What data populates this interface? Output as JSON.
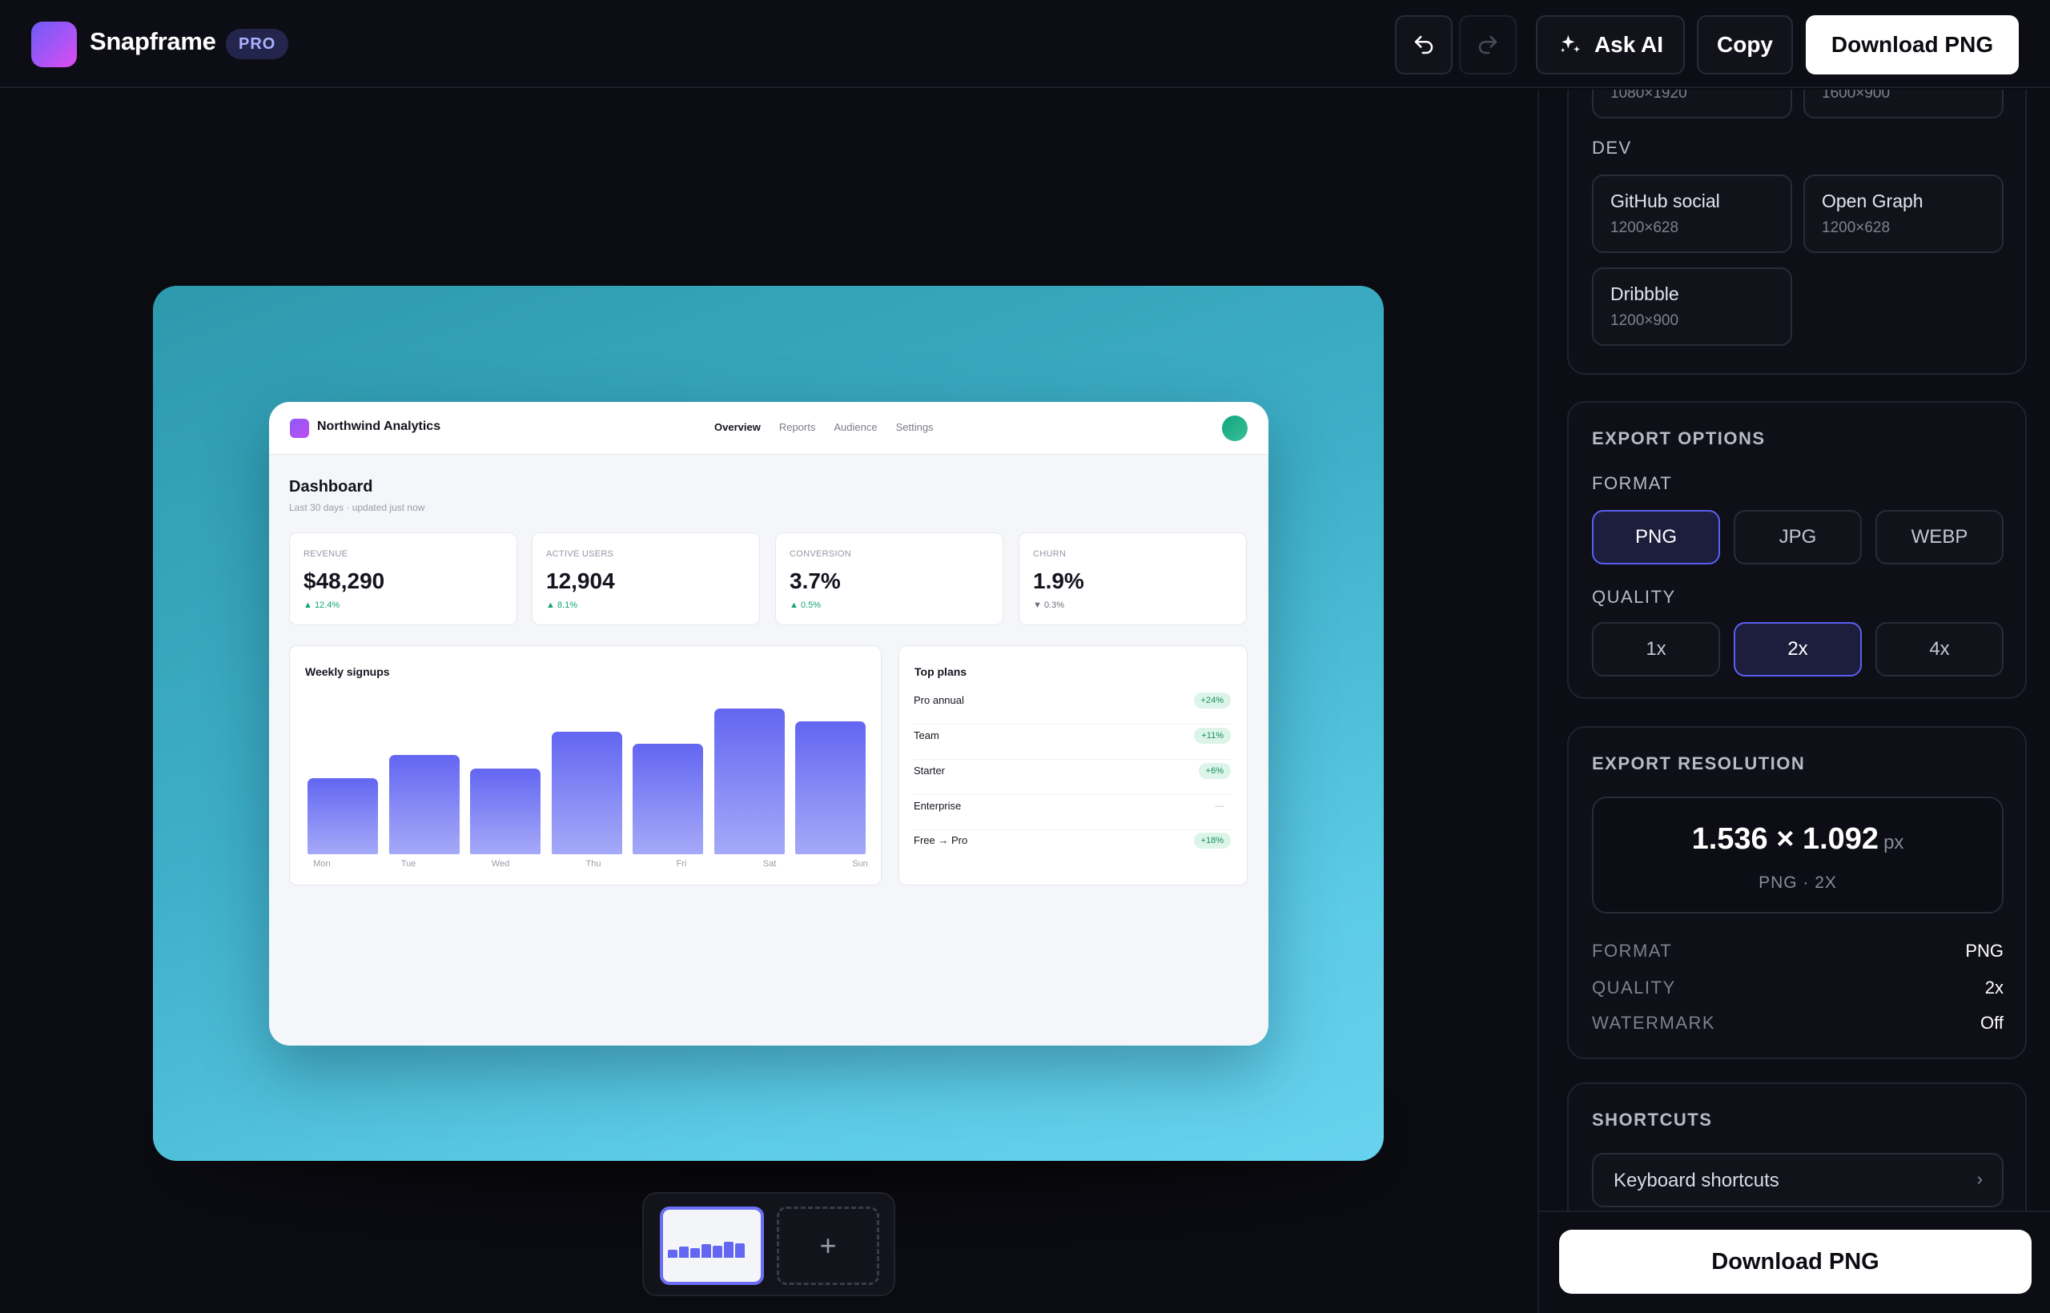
{
  "app": {
    "name": "Snapframe",
    "badge": "PRO"
  },
  "toolbar": {
    "ask_ai_label": "Ask AI",
    "copy_label": "Copy",
    "download_label": "Download PNG"
  },
  "icons": {
    "logo": "logo-mark",
    "undo": "undo-icon",
    "redo": "redo-icon",
    "sparkle": "sparkle-icon",
    "add": "plus-icon",
    "chevron": "chevron-right-icon"
  },
  "colors": {
    "accent": "#5b5ff0",
    "frame_gradient_start": "#2d99ad",
    "frame_gradient_end": "#67d3ee",
    "positive": "#12a275"
  },
  "mock": {
    "brand": "Northwind Analytics",
    "tabs": [
      "Overview",
      "Reports",
      "Audience",
      "Settings"
    ],
    "active_tab": "Overview",
    "title": "Dashboard",
    "subtitle": "Last 30 days · updated just now",
    "stats": [
      {
        "label": "REVENUE",
        "value": "$48,290",
        "delta": "▲ 12.4%"
      },
      {
        "label": "ACTIVE USERS",
        "value": "12,904",
        "delta": "▲ 8.1%"
      },
      {
        "label": "CONVERSION",
        "value": "3.7%",
        "delta": "▲ 0.5%"
      },
      {
        "label": "CHURN",
        "value": "1.9%",
        "delta": "▼ 0.3%"
      }
    ],
    "chart": {
      "title": "Weekly signups",
      "days": [
        "Mon",
        "Tue",
        "Wed",
        "Thu",
        "Fri",
        "Sat",
        "Sun"
      ],
      "values": [
        52,
        68,
        59,
        84,
        76,
        100,
        91
      ]
    },
    "plans": {
      "title": "Top plans",
      "rows": [
        {
          "name": "Pro annual",
          "tag": "+24%"
        },
        {
          "name": "Team",
          "tag": "+11%"
        },
        {
          "name": "Starter",
          "tag": "+6%"
        },
        {
          "name": "Enterprise",
          "tag": "—"
        },
        {
          "name": "Free → Pro",
          "tag": "+18%"
        }
      ]
    }
  },
  "thumbs": {
    "add_label": "+"
  },
  "panel": {
    "top_sizes": [
      {
        "dims": "1080×1920"
      },
      {
        "dims": "1600×900"
      }
    ],
    "dev": {
      "heading": "DEV",
      "sizes": [
        {
          "name": "GitHub social",
          "dims": "1200×628"
        },
        {
          "name": "Open Graph",
          "dims": "1200×628"
        },
        {
          "name": "Dribbble",
          "dims": "1200×900"
        }
      ]
    },
    "export_options": {
      "heading": "EXPORT OPTIONS",
      "format_heading": "FORMAT",
      "formats": [
        "PNG",
        "JPG",
        "WEBP"
      ],
      "selected_format": "PNG",
      "quality_heading": "QUALITY",
      "qualities": [
        "1x",
        "2x",
        "4x"
      ],
      "selected_quality": "2x"
    },
    "export_resolution": {
      "heading": "EXPORT RESOLUTION",
      "value": "1.536 × 1.092",
      "unit": "px",
      "summary": "PNG · 2X",
      "rows": [
        {
          "key": "FORMAT",
          "value": "PNG"
        },
        {
          "key": "QUALITY",
          "value": "2x"
        },
        {
          "key": "WATERMARK",
          "value": "Off"
        }
      ]
    },
    "shortcuts": {
      "heading": "SHORTCUTS",
      "item": "Keyboard shortcuts",
      "chevron": "›"
    }
  },
  "bottom": {
    "download_label": "Download PNG"
  }
}
